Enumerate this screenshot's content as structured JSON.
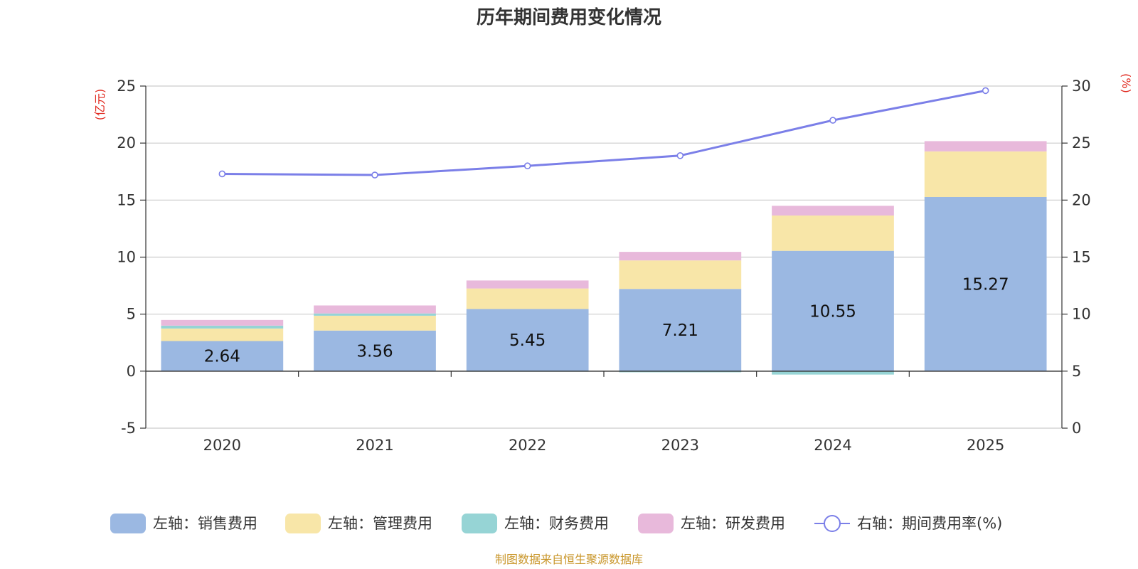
{
  "chart_data": {
    "type": "bar",
    "stacked": true,
    "title": "历年期间费用变化情况",
    "categories": [
      "2020",
      "2021",
      "2022",
      "2023",
      "2024",
      "2025"
    ],
    "left_axis": {
      "unit_label": "(亿元)",
      "range": [
        -5,
        25
      ],
      "ticks": [
        "-5",
        "0",
        "5",
        "10",
        "15",
        "20",
        "25"
      ]
    },
    "right_axis": {
      "unit_label": "(%)",
      "range": [
        0,
        30
      ],
      "ticks": [
        "0",
        "5",
        "10",
        "15",
        "20",
        "25",
        "30"
      ]
    },
    "series": [
      {
        "name": "左轴：销售费用",
        "axis": "left",
        "color": "#9bb8e2",
        "values": [
          2.64,
          3.56,
          5.45,
          7.21,
          10.55,
          15.27
        ],
        "labels": [
          "2.64",
          "3.56",
          "5.45",
          "7.21",
          "10.55",
          "15.27"
        ]
      },
      {
        "name": "左轴：管理费用",
        "axis": "left",
        "color": "#f8e6a8",
        "values": [
          1.1,
          1.3,
          1.8,
          2.5,
          3.1,
          4.0
        ],
        "labels": [
          "",
          "",
          "",
          "",
          "",
          ""
        ]
      },
      {
        "name": "左轴：财务费用",
        "axis": "left",
        "color": "#96d4d5",
        "values": [
          0.25,
          0.2,
          -0.05,
          -0.1,
          -0.3,
          -0.02
        ],
        "labels": [
          "",
          "",
          "",
          "",
          "",
          ""
        ]
      },
      {
        "name": "左轴：研发费用",
        "axis": "left",
        "color": "#e8b9db",
        "values": [
          0.5,
          0.7,
          0.7,
          0.75,
          0.85,
          0.9
        ],
        "labels": [
          "",
          "",
          "",
          "",
          "",
          ""
        ]
      },
      {
        "name": "右轴：期间费用率(%)",
        "axis": "right",
        "type": "line",
        "color": "#7b7fe8",
        "values": [
          22.3,
          22.2,
          23.0,
          23.9,
          27.0,
          29.6
        ]
      }
    ],
    "legend_position": "bottom",
    "grid": true
  },
  "source_note": "制图数据来自恒生聚源数据库"
}
